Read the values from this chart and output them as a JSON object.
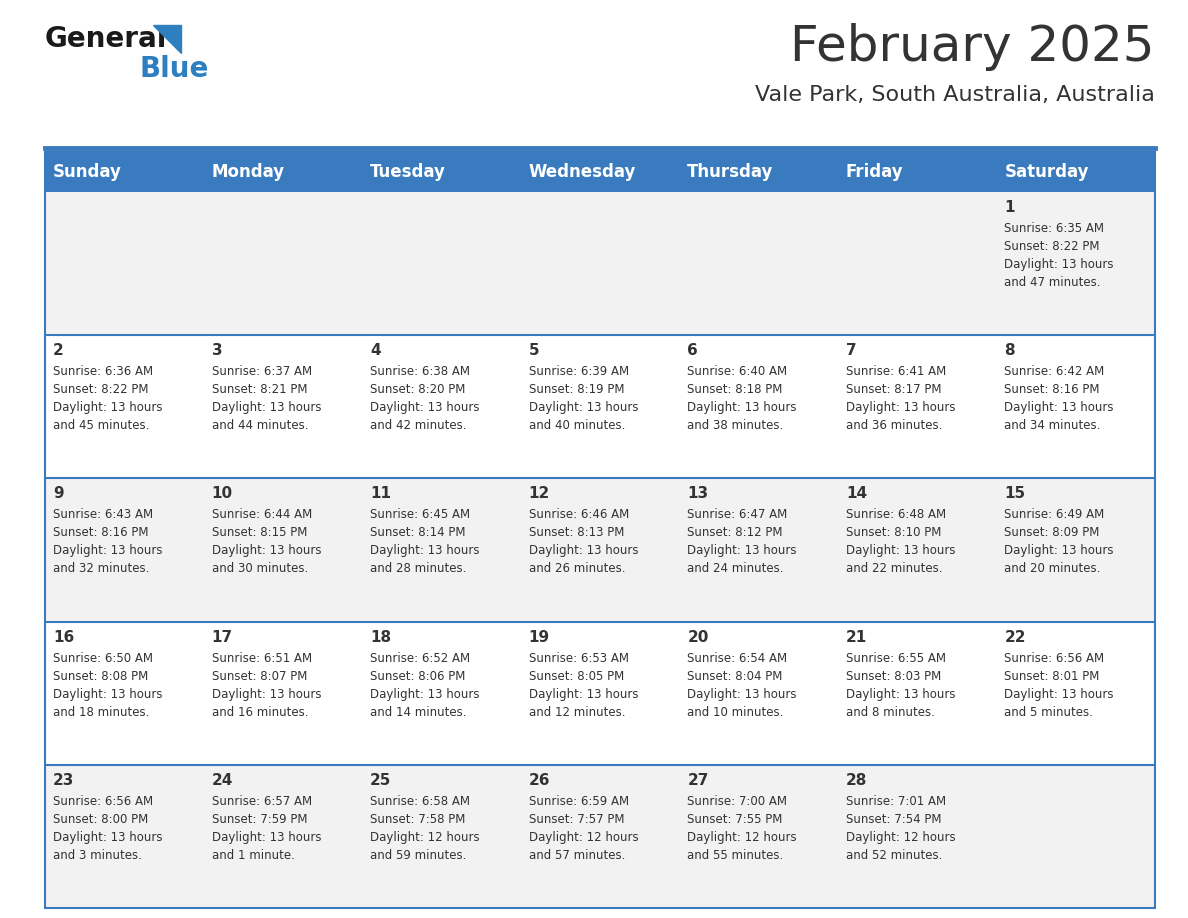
{
  "title": "February 2025",
  "subtitle": "Vale Park, South Australia, Australia",
  "header_color": "#3a7bbf",
  "header_text_color": "#ffffff",
  "day_names": [
    "Sunday",
    "Monday",
    "Tuesday",
    "Wednesday",
    "Thursday",
    "Friday",
    "Saturday"
  ],
  "cell_bg_odd": "#f2f2f2",
  "cell_bg_even": "#ffffff",
  "divider_color": "#3a7bbf",
  "text_color": "#333333",
  "logo_general_color": "#1a1a1a",
  "logo_blue_color": "#2e7fc0",
  "title_fontsize": 36,
  "subtitle_fontsize": 16,
  "header_fontsize": 12,
  "day_num_fontsize": 11,
  "info_fontsize": 8.5,
  "weeks": [
    [
      {
        "day": null,
        "info": null
      },
      {
        "day": null,
        "info": null
      },
      {
        "day": null,
        "info": null
      },
      {
        "day": null,
        "info": null
      },
      {
        "day": null,
        "info": null
      },
      {
        "day": null,
        "info": null
      },
      {
        "day": 1,
        "info": "Sunrise: 6:35 AM\nSunset: 8:22 PM\nDaylight: 13 hours\nand 47 minutes."
      }
    ],
    [
      {
        "day": 2,
        "info": "Sunrise: 6:36 AM\nSunset: 8:22 PM\nDaylight: 13 hours\nand 45 minutes."
      },
      {
        "day": 3,
        "info": "Sunrise: 6:37 AM\nSunset: 8:21 PM\nDaylight: 13 hours\nand 44 minutes."
      },
      {
        "day": 4,
        "info": "Sunrise: 6:38 AM\nSunset: 8:20 PM\nDaylight: 13 hours\nand 42 minutes."
      },
      {
        "day": 5,
        "info": "Sunrise: 6:39 AM\nSunset: 8:19 PM\nDaylight: 13 hours\nand 40 minutes."
      },
      {
        "day": 6,
        "info": "Sunrise: 6:40 AM\nSunset: 8:18 PM\nDaylight: 13 hours\nand 38 minutes."
      },
      {
        "day": 7,
        "info": "Sunrise: 6:41 AM\nSunset: 8:17 PM\nDaylight: 13 hours\nand 36 minutes."
      },
      {
        "day": 8,
        "info": "Sunrise: 6:42 AM\nSunset: 8:16 PM\nDaylight: 13 hours\nand 34 minutes."
      }
    ],
    [
      {
        "day": 9,
        "info": "Sunrise: 6:43 AM\nSunset: 8:16 PM\nDaylight: 13 hours\nand 32 minutes."
      },
      {
        "day": 10,
        "info": "Sunrise: 6:44 AM\nSunset: 8:15 PM\nDaylight: 13 hours\nand 30 minutes."
      },
      {
        "day": 11,
        "info": "Sunrise: 6:45 AM\nSunset: 8:14 PM\nDaylight: 13 hours\nand 28 minutes."
      },
      {
        "day": 12,
        "info": "Sunrise: 6:46 AM\nSunset: 8:13 PM\nDaylight: 13 hours\nand 26 minutes."
      },
      {
        "day": 13,
        "info": "Sunrise: 6:47 AM\nSunset: 8:12 PM\nDaylight: 13 hours\nand 24 minutes."
      },
      {
        "day": 14,
        "info": "Sunrise: 6:48 AM\nSunset: 8:10 PM\nDaylight: 13 hours\nand 22 minutes."
      },
      {
        "day": 15,
        "info": "Sunrise: 6:49 AM\nSunset: 8:09 PM\nDaylight: 13 hours\nand 20 minutes."
      }
    ],
    [
      {
        "day": 16,
        "info": "Sunrise: 6:50 AM\nSunset: 8:08 PM\nDaylight: 13 hours\nand 18 minutes."
      },
      {
        "day": 17,
        "info": "Sunrise: 6:51 AM\nSunset: 8:07 PM\nDaylight: 13 hours\nand 16 minutes."
      },
      {
        "day": 18,
        "info": "Sunrise: 6:52 AM\nSunset: 8:06 PM\nDaylight: 13 hours\nand 14 minutes."
      },
      {
        "day": 19,
        "info": "Sunrise: 6:53 AM\nSunset: 8:05 PM\nDaylight: 13 hours\nand 12 minutes."
      },
      {
        "day": 20,
        "info": "Sunrise: 6:54 AM\nSunset: 8:04 PM\nDaylight: 13 hours\nand 10 minutes."
      },
      {
        "day": 21,
        "info": "Sunrise: 6:55 AM\nSunset: 8:03 PM\nDaylight: 13 hours\nand 8 minutes."
      },
      {
        "day": 22,
        "info": "Sunrise: 6:56 AM\nSunset: 8:01 PM\nDaylight: 13 hours\nand 5 minutes."
      }
    ],
    [
      {
        "day": 23,
        "info": "Sunrise: 6:56 AM\nSunset: 8:00 PM\nDaylight: 13 hours\nand 3 minutes."
      },
      {
        "day": 24,
        "info": "Sunrise: 6:57 AM\nSunset: 7:59 PM\nDaylight: 13 hours\nand 1 minute."
      },
      {
        "day": 25,
        "info": "Sunrise: 6:58 AM\nSunset: 7:58 PM\nDaylight: 12 hours\nand 59 minutes."
      },
      {
        "day": 26,
        "info": "Sunrise: 6:59 AM\nSunset: 7:57 PM\nDaylight: 12 hours\nand 57 minutes."
      },
      {
        "day": 27,
        "info": "Sunrise: 7:00 AM\nSunset: 7:55 PM\nDaylight: 12 hours\nand 55 minutes."
      },
      {
        "day": 28,
        "info": "Sunrise: 7:01 AM\nSunset: 7:54 PM\nDaylight: 12 hours\nand 52 minutes."
      },
      {
        "day": null,
        "info": null
      }
    ]
  ]
}
